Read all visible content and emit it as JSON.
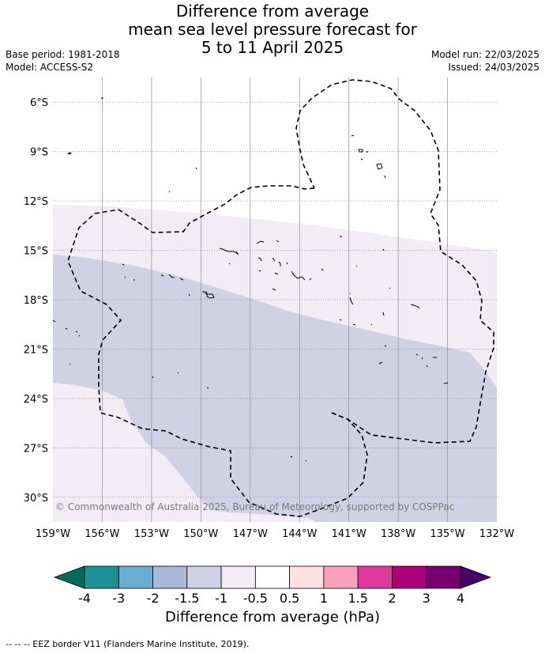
{
  "title": {
    "line1": "Difference from average",
    "line2": "mean sea level pressure forecast for",
    "line3": "5 to 11 April 2025"
  },
  "meta": {
    "base_period": "Base period: 1981-2018",
    "model": "Model: ACCESS-S2",
    "model_run": "Model run: 22/03/2025",
    "issued": "Issued: 24/03/2025"
  },
  "map": {
    "lon_labels": [
      "159°W",
      "156°W",
      "153°W",
      "150°W",
      "147°W",
      "144°W",
      "141°W",
      "138°W",
      "135°W",
      "132°W"
    ],
    "lat_labels": [
      "6°S",
      "9°S",
      "12°S",
      "15°S",
      "18°S",
      "21°S",
      "24°S",
      "27°S",
      "30°S"
    ],
    "lon_range": [
      -159,
      -132
    ],
    "lat_range": [
      -31.5,
      -4.5
    ],
    "colors": {
      "minus_1_5_to_minus_1": "#d0d1e5",
      "minus_1_to_minus_0_5": "#f2ecf5",
      "grid": "#9a9a9a"
    },
    "copyright": "© Commonwealth of Australia 2025, Bureau of Meteorology, supported by COSPPac"
  },
  "colorbar": {
    "tick_labels": [
      "-4",
      "-3",
      "-2",
      "-1.5",
      "-1",
      "-0.5",
      "0.5",
      "1",
      "1.5",
      "2",
      "3",
      "4"
    ],
    "colors": [
      "#1e9096",
      "#6aacd2",
      "#a9b7d8",
      "#d0d1e5",
      "#f2ecf5",
      "#ffffff",
      "#fde0e0",
      "#f8a0bc",
      "#df3a9c",
      "#ab0077",
      "#76006f"
    ],
    "extend_low_color": "#016c59",
    "extend_high_color": "#49006a",
    "label": "Difference from average (hPa)"
  },
  "footer": "--  --  -- EEZ border V11 (Flanders Marine Institute, 2019)."
}
